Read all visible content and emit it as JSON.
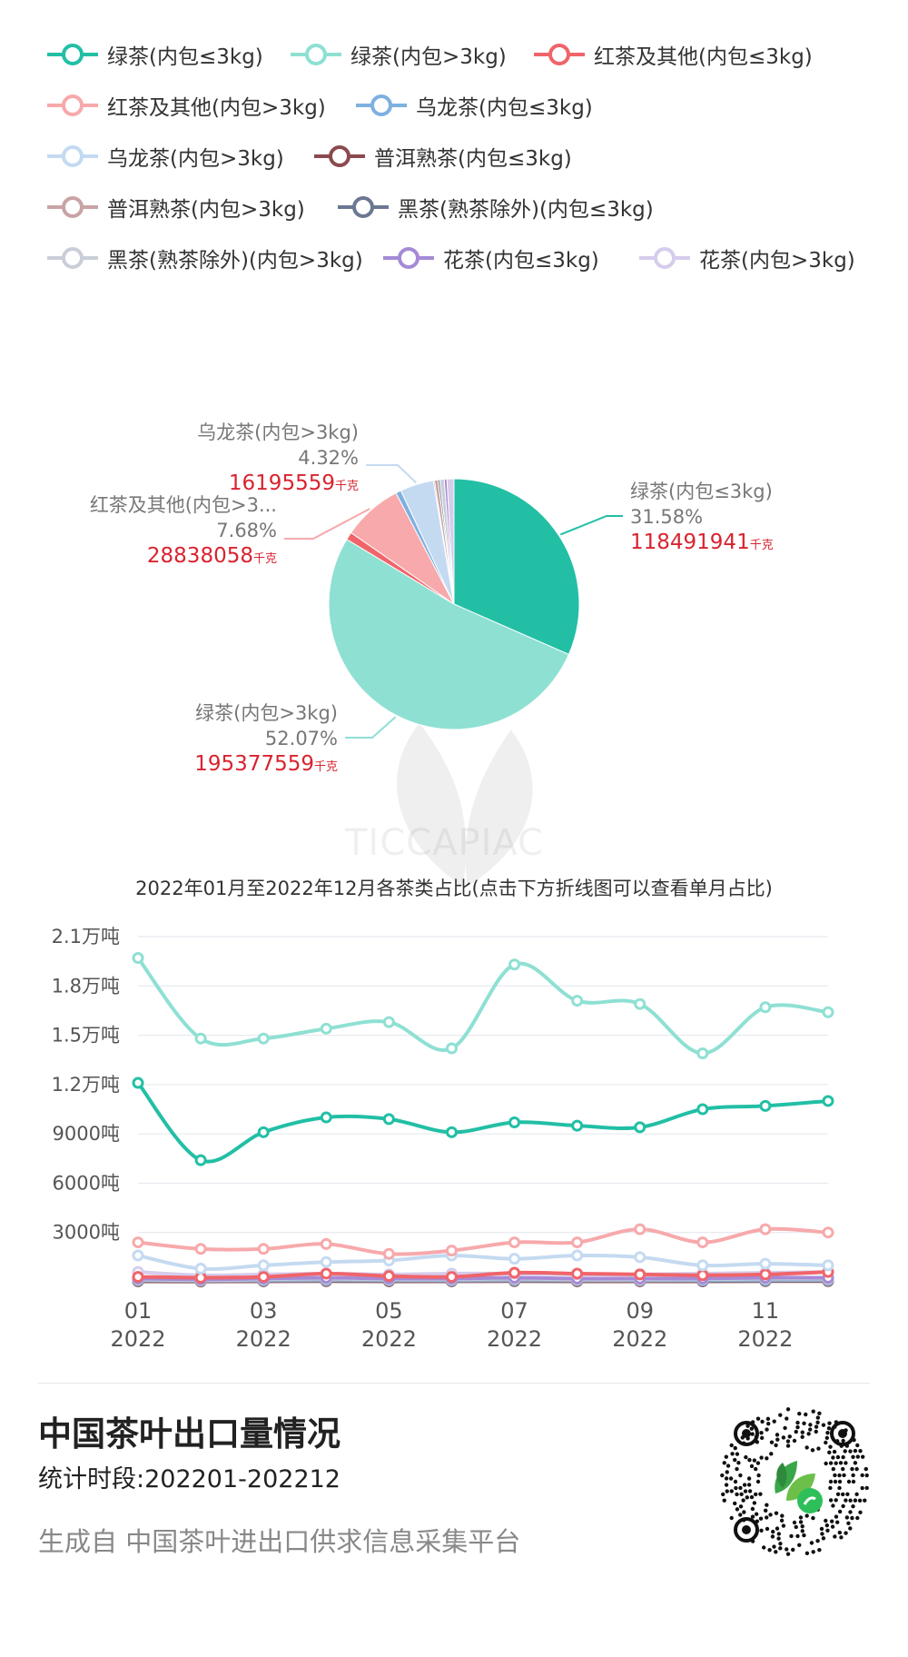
{
  "legend": [
    {
      "name": "绿茶(内包≤3kg)",
      "color": "#22bfa5"
    },
    {
      "name": "绿茶(内包>3kg)",
      "color": "#8ee0d3"
    },
    {
      "name": "红茶及其他(内包≤3kg)",
      "color": "#f0646a"
    },
    {
      "name": "红茶及其他(内包>3kg)",
      "color": "#f7a9ab"
    },
    {
      "name": "乌龙茶(内包≤3kg)",
      "color": "#7eb0e0"
    },
    {
      "name": "乌龙茶(内包>3kg)",
      "color": "#c4daf1"
    },
    {
      "name": "普洱熟茶(内包≤3kg)",
      "color": "#8b4a4e"
    },
    {
      "name": "普洱熟茶(内包>3kg)",
      "color": "#c9a3a5"
    },
    {
      "name": "黑茶(熟茶除外)(内包≤3kg)",
      "color": "#6b7893"
    },
    {
      "name": "黑茶(熟茶除外)(内包>3kg)",
      "color": "#c9ced8"
    },
    {
      "name": "花茶(内包≤3kg)",
      "color": "#a58ad6"
    },
    {
      "name": "花茶(内包>3kg)",
      "color": "#d6ccec"
    }
  ],
  "chart_data": [
    {
      "type": "pie",
      "unit": "千克",
      "slices": [
        {
          "name": "绿茶(内包≤3kg)",
          "value": 118491941,
          "percent": 31.58,
          "color": "#22bfa5",
          "labeled": true,
          "label_text": "绿茶(内包≤3kg)"
        },
        {
          "name": "绿茶(内包>3kg)",
          "value": 195377559,
          "percent": 52.07,
          "color": "#8ee0d3",
          "labeled": true,
          "label_text": "绿茶(内包>3kg)"
        },
        {
          "name": "红茶及其他(内包≤3kg)",
          "percent": 1.0,
          "color": "#f0646a",
          "labeled": false
        },
        {
          "name": "红茶及其他(内包>3kg)",
          "value": 28838058,
          "percent": 7.68,
          "color": "#f7a9ab",
          "labeled": true,
          "label_text": "红茶及其他(内包>3..."
        },
        {
          "name": "乌龙茶(内包≤3kg)",
          "percent": 0.7,
          "color": "#7eb0e0",
          "labeled": false
        },
        {
          "name": "乌龙茶(内包>3kg)",
          "value": 16195559,
          "percent": 4.32,
          "color": "#c4daf1",
          "labeled": true,
          "label_text": "乌龙茶(内包>3kg)"
        },
        {
          "name": "普洱熟茶(内包≤3kg)",
          "percent": 0.15,
          "color": "#8b4a4e",
          "labeled": false
        },
        {
          "name": "普洱熟茶(内包>3kg)",
          "percent": 0.45,
          "color": "#c9a3a5",
          "labeled": false
        },
        {
          "name": "黑茶(熟茶除外)(内包≤3kg)",
          "percent": 0.25,
          "color": "#6b7893",
          "labeled": false
        },
        {
          "name": "黑茶(熟茶除外)(内包>3kg)",
          "percent": 0.55,
          "color": "#c9ced8",
          "labeled": false
        },
        {
          "name": "花茶(内包≤3kg)",
          "percent": 0.35,
          "color": "#a58ad6",
          "labeled": false
        },
        {
          "name": "花茶(内包>3kg)",
          "percent": 0.9,
          "color": "#d6ccec",
          "labeled": false
        }
      ]
    },
    {
      "type": "line",
      "title": "2022年01月至2022年12月各茶类占比(点击下方折线图可以查看单月占比)",
      "x": [
        "202201",
        "202202",
        "202203",
        "202204",
        "202205",
        "202206",
        "202207",
        "202208",
        "202209",
        "202210",
        "202211",
        "202212"
      ],
      "x_tick_labels": [
        [
          "01",
          "2022"
        ],
        [
          "03",
          "2022"
        ],
        [
          "05",
          "2022"
        ],
        [
          "07",
          "2022"
        ],
        [
          "09",
          "2022"
        ],
        [
          "11",
          "2022"
        ]
      ],
      "y_ticks": [
        "3000吨",
        "6000吨",
        "9000吨",
        "1.2万吨",
        "1.5万吨",
        "1.8万吨",
        "2.1万吨"
      ],
      "ylim": [
        0,
        21000
      ],
      "grid": true,
      "unit": "吨",
      "series": [
        {
          "name": "绿茶(内包>3kg)",
          "color": "#8ee0d3",
          "values": [
            19700,
            14800,
            14800,
            15400,
            15800,
            14200,
            19300,
            17100,
            16900,
            13900,
            16700,
            16400
          ]
        },
        {
          "name": "绿茶(内包≤3kg)",
          "color": "#22bfa5",
          "values": [
            12100,
            7400,
            9100,
            10000,
            9900,
            9100,
            9700,
            9500,
            9400,
            10500,
            10700,
            11000
          ]
        },
        {
          "name": "红茶及其他(内包>3kg)",
          "color": "#f7a9ab",
          "values": [
            2400,
            2000,
            2000,
            2300,
            1700,
            1900,
            2400,
            2400,
            3200,
            2400,
            3200,
            3000
          ]
        },
        {
          "name": "乌龙茶(内包>3kg)",
          "color": "#c4daf1",
          "values": [
            1600,
            800,
            1000,
            1200,
            1300,
            1600,
            1400,
            1600,
            1500,
            1000,
            1100,
            1000
          ]
        },
        {
          "name": "红茶及其他(内包≤3kg)",
          "color": "#f0646a",
          "values": [
            300,
            250,
            300,
            500,
            350,
            300,
            550,
            500,
            450,
            400,
            450,
            600
          ]
        },
        {
          "name": "花茶(内包>3kg)",
          "color": "#d6ccec",
          "values": [
            600,
            400,
            450,
            500,
            450,
            500,
            500,
            450,
            450,
            500,
            550,
            600
          ]
        },
        {
          "name": "花茶(内包≤3kg)",
          "color": "#a58ad6",
          "values": [
            200,
            150,
            200,
            250,
            200,
            200,
            250,
            200,
            200,
            200,
            250,
            250
          ]
        },
        {
          "name": "黑茶(熟茶除外)(内包>3kg)",
          "color": "#c9ced8",
          "values": [
            150,
            100,
            150,
            200,
            150,
            150,
            200,
            150,
            150,
            150,
            200,
            200
          ]
        },
        {
          "name": "乌龙茶(内包≤3kg)",
          "color": "#7eb0e0",
          "values": [
            120,
            100,
            110,
            150,
            120,
            110,
            150,
            130,
            120,
            110,
            140,
            150
          ]
        },
        {
          "name": "普洱熟茶(内包>3kg)",
          "color": "#c9a3a5",
          "values": [
            100,
            80,
            90,
            110,
            100,
            90,
            110,
            100,
            90,
            100,
            110,
            110
          ]
        },
        {
          "name": "黑茶(熟茶除外)(内包≤3kg)",
          "color": "#6b7893",
          "values": [
            60,
            50,
            60,
            70,
            60,
            60,
            70,
            60,
            60,
            60,
            70,
            70
          ]
        },
        {
          "name": "普洱熟茶(内包≤3kg)",
          "color": "#8b4a4e",
          "values": [
            30,
            20,
            30,
            40,
            30,
            30,
            40,
            30,
            30,
            30,
            40,
            40
          ]
        }
      ]
    }
  ],
  "footer": {
    "title": "中国茶叶出口量情况",
    "period": "统计时段:202201-202212",
    "source": "生成自 中国茶叶进出口供求信息采集平台"
  },
  "watermark": {
    "text": "TICCAPIAC"
  },
  "qr_icon": "mini-program-qr-code",
  "leaf_icon": "tea-leaf-logo-icon"
}
